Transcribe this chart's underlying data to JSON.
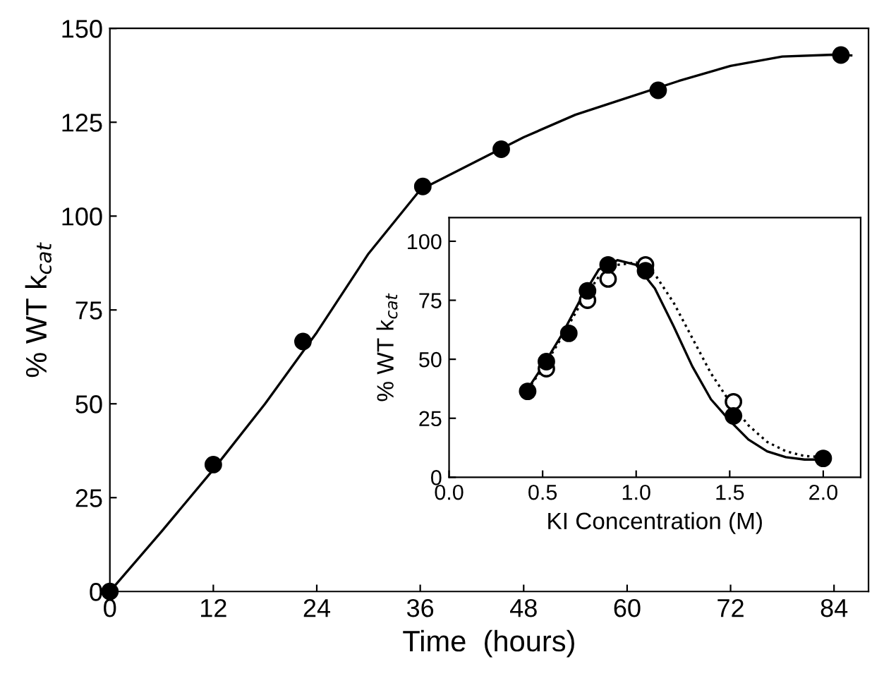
{
  "chart_data": [
    {
      "type": "scatter",
      "xlabel": "Time  (hours)",
      "ylabel": "% WT k$_{cat}$",
      "x": [
        0,
        12,
        22.4,
        36.3,
        45.4,
        63.6,
        84.8
      ],
      "series": [
        {
          "type": "line",
          "color": "#000000",
          "marker": "none",
          "line_style": "solid",
          "x": [
            0,
            6,
            12,
            18,
            24,
            30,
            36,
            42,
            48,
            54,
            60,
            66,
            72,
            78,
            84,
            86
          ],
          "values": [
            0,
            16,
            32.5,
            50,
            69,
            90,
            107,
            114,
            121,
            127,
            131.5,
            136,
            140,
            142.5,
            143,
            142.8
          ]
        },
        {
          "color": "#000000",
          "marker": "circle",
          "values": [
            0,
            33.8,
            66.6,
            107.9,
            117.8,
            133.5,
            142.9
          ]
        }
      ],
      "xlim": [
        0,
        88
      ],
      "xticks": [
        0,
        12,
        24,
        36,
        48,
        60,
        72,
        84
      ],
      "ylim": [
        0,
        150
      ],
      "yticks": [
        0,
        25,
        50,
        75,
        100,
        125,
        150
      ],
      "grid": false,
      "legend": false
    },
    {
      "type": "scatter",
      "xlabel": "KI Concentration (M)",
      "ylabel": "% WT k$_{cat}$",
      "x": [
        0.42,
        0.52,
        0.64,
        0.74,
        0.85,
        1.05,
        1.52,
        2.0
      ],
      "series": [
        {
          "type": "line",
          "color": "#000000",
          "line_style": "solid",
          "marker": "none",
          "x": [
            0.4,
            0.5,
            0.6,
            0.7,
            0.8,
            0.9,
            1.0,
            1.1,
            1.2,
            1.3,
            1.4,
            1.5,
            1.6,
            1.7,
            1.8,
            1.9,
            2.0
          ],
          "values": [
            35,
            47,
            60,
            75,
            88,
            92,
            90,
            80,
            64,
            47,
            33,
            24,
            16,
            11,
            8.5,
            7.5,
            7.5
          ]
        },
        {
          "type": "line",
          "color": "#000000",
          "line_style": "dotted",
          "marker": "none",
          "x": [
            0.4,
            0.5,
            0.6,
            0.7,
            0.8,
            0.9,
            1.0,
            1.1,
            1.2,
            1.3,
            1.4,
            1.5,
            1.6,
            1.7,
            1.8,
            1.9,
            2.0
          ],
          "values": [
            35,
            46,
            59,
            73,
            85,
            90,
            91,
            86,
            74,
            59,
            44,
            32,
            22,
            15,
            11,
            9,
            8.5
          ]
        },
        {
          "color": "#ffffff",
          "marker": "circle",
          "values": [
            null,
            46,
            null,
            75,
            84,
            90,
            32,
            null
          ]
        },
        {
          "color": "#000000",
          "marker": "circle",
          "values": [
            36.4,
            49,
            61,
            79,
            90,
            87.5,
            26,
            8
          ]
        }
      ],
      "xlim": [
        0,
        2.2
      ],
      "xticks": [
        {
          "value": 0,
          "label": "0.0"
        },
        0.5,
        {
          "value": 1,
          "label": "1.0"
        },
        1.5,
        {
          "value": 2,
          "label": "2.0"
        }
      ],
      "ylim": [
        0,
        110
      ],
      "yticks": [
        0,
        25,
        50,
        75,
        100
      ],
      "grid": false,
      "legend": false
    }
  ]
}
